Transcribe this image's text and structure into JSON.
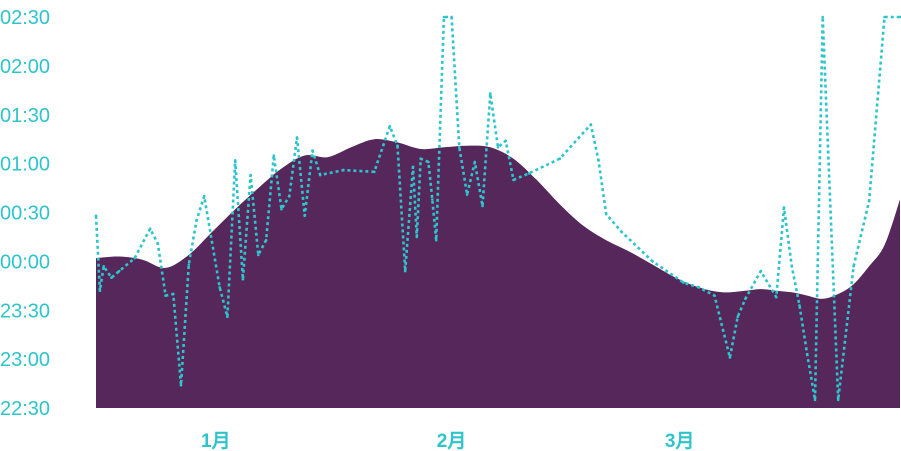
{
  "chart_data": {
    "type": "area",
    "y_tick_labels": [
      "02:30",
      "02:00",
      "01:30",
      "01:00",
      "00:30",
      "00:00",
      "23:30",
      "23:00",
      "22:30"
    ],
    "y_tick_values": [
      240,
      210,
      180,
      150,
      120,
      90,
      60,
      30,
      0
    ],
    "x_tick_labels": [
      "1月",
      "2月",
      "3月"
    ],
    "x_tick_days": [
      15.5,
      46,
      75.5
    ],
    "x_range": [
      0,
      104
    ],
    "y_range": [
      0,
      240
    ],
    "grid": false,
    "legend": "none",
    "colors": {
      "area": "#55275a",
      "line": "#2ec4cc",
      "ticks": "#2ec4cc"
    },
    "area_series": {
      "x": [
        0,
        3,
        6,
        9,
        12,
        15,
        18,
        21,
        24,
        27,
        30,
        33,
        36,
        39,
        42,
        45,
        48,
        51,
        54,
        57,
        60,
        63,
        66,
        69,
        72,
        75,
        78,
        81,
        84,
        86,
        88,
        90,
        92,
        94,
        96,
        98,
        100,
        102,
        104
      ],
      "y": [
        92,
        93,
        91,
        86,
        94,
        108,
        122,
        135,
        147,
        155,
        154,
        160,
        165,
        163,
        159,
        160,
        161,
        160,
        153,
        140,
        125,
        112,
        103,
        96,
        88,
        80,
        74,
        71,
        72,
        73,
        72,
        71,
        69,
        67,
        70,
        76,
        87,
        100,
        128
      ]
    },
    "line_series": {
      "x": [
        0,
        0.5,
        1,
        2,
        3,
        5,
        7,
        8,
        9,
        10,
        11,
        12,
        13,
        14,
        16,
        17,
        18,
        19,
        20,
        21,
        22,
        23,
        24,
        25,
        26,
        27,
        28,
        29,
        32,
        36,
        38,
        39,
        40,
        41,
        41.5,
        42,
        43,
        43.5,
        44,
        45,
        46,
        47,
        48,
        49,
        50,
        51,
        52,
        53,
        54,
        56,
        60,
        64,
        65,
        66,
        68,
        72,
        76,
        78,
        80,
        82,
        83,
        84,
        86,
        88,
        89,
        90,
        91,
        92,
        93,
        94,
        96,
        98,
        100,
        102,
        104
      ],
      "y": [
        118,
        72,
        87,
        80,
        84,
        92,
        110,
        101,
        69,
        70,
        14,
        88,
        115,
        130,
        74,
        56,
        152,
        79,
        143,
        94,
        103,
        155,
        122,
        130,
        166,
        118,
        158,
        143,
        146,
        145,
        173,
        161,
        84,
        148,
        105,
        153,
        151,
        128,
        103,
        240,
        240,
        160,
        131,
        151,
        124,
        193,
        160,
        164,
        140,
        144,
        153,
        174,
        152,
        119,
        108,
        90,
        77,
        74,
        69,
        31,
        56,
        67,
        84,
        68,
        123,
        87,
        63,
        33,
        5,
        240,
        5,
        87,
        127,
        240,
        240
      ]
    }
  }
}
